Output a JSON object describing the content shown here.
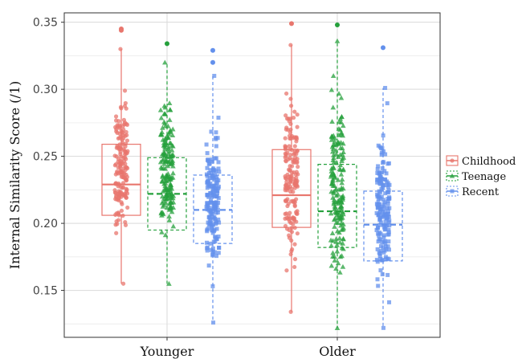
{
  "chart_data": {
    "type": "box",
    "ylabel": "Internal Similarity Score (/1)",
    "xlabel": "",
    "categories": [
      "Younger",
      "Older"
    ],
    "ylim": [
      0.115,
      0.357
    ],
    "yticks": [
      0.15,
      0.2,
      0.25,
      0.3,
      0.35
    ],
    "ytick_labels": [
      "0.15",
      "0.20",
      "0.25",
      "0.30",
      "0.35"
    ],
    "grid": true,
    "legend_position": "right",
    "series": [
      {
        "name": "Childhood",
        "color": "#e8766d",
        "line_style": "solid",
        "marker": "circle",
        "boxes": [
          {
            "category": "Younger",
            "whisker_low": 0.155,
            "q1": 0.206,
            "median": 0.229,
            "q3": 0.259,
            "whisker_high": 0.33,
            "outliers": [
              0.344,
              0.345
            ],
            "min_pt": 0.155,
            "max_pt": 0.33
          },
          {
            "category": "Older",
            "whisker_low": 0.134,
            "q1": 0.197,
            "median": 0.221,
            "q3": 0.255,
            "whisker_high": 0.333,
            "outliers": [
              0.349
            ],
            "min_pt": 0.134,
            "max_pt": 0.333
          }
        ]
      },
      {
        "name": "Teenage",
        "color": "#25a03c",
        "line_style": "dashed",
        "marker": "triangle",
        "boxes": [
          {
            "category": "Younger",
            "whisker_low": 0.155,
            "q1": 0.195,
            "median": 0.222,
            "q3": 0.249,
            "whisker_high": 0.32,
            "outliers": [
              0.334
            ],
            "min_pt": 0.155,
            "max_pt": 0.32
          },
          {
            "category": "Older",
            "whisker_low": 0.122,
            "q1": 0.182,
            "median": 0.209,
            "q3": 0.244,
            "whisker_high": 0.336,
            "outliers": [
              0.348
            ],
            "min_pt": 0.122,
            "max_pt": 0.336
          }
        ]
      },
      {
        "name": "Recent",
        "color": "#6390ec",
        "line_style": "dashed",
        "marker": "square",
        "boxes": [
          {
            "category": "Younger",
            "whisker_low": 0.126,
            "q1": 0.185,
            "median": 0.21,
            "q3": 0.236,
            "whisker_high": 0.31,
            "outliers": [
              0.32,
              0.329
            ],
            "min_pt": 0.126,
            "max_pt": 0.31
          },
          {
            "category": "Older",
            "whisker_low": 0.122,
            "q1": 0.172,
            "median": 0.199,
            "q3": 0.224,
            "whisker_high": 0.301,
            "outliers": [
              0.331
            ],
            "min_pt": 0.122,
            "max_pt": 0.301
          }
        ]
      }
    ]
  }
}
